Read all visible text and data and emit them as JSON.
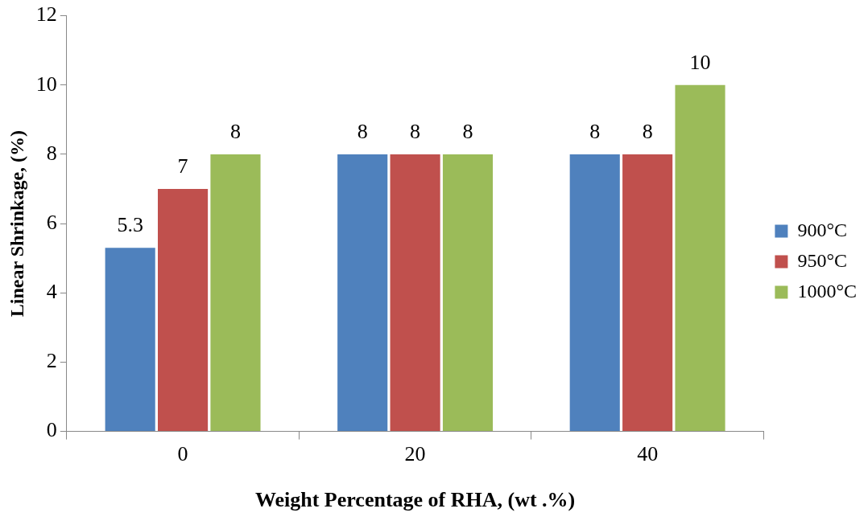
{
  "chart_data": {
    "type": "bar",
    "xlabel": "Weight Percentage of RHA, (wt .%)",
    "ylabel": "Linear Shrinkage, (%)",
    "categories": [
      "0",
      "20",
      "40"
    ],
    "series": [
      {
        "name": "900°C",
        "color": "#4f81bd",
        "values": [
          5.3,
          8,
          8
        ]
      },
      {
        "name": "950°C",
        "color": "#c0504d",
        "values": [
          7,
          8,
          8
        ]
      },
      {
        "name": "1000°C",
        "color": "#9bbb59",
        "values": [
          8,
          8,
          10
        ]
      }
    ],
    "ylim": [
      0,
      12
    ],
    "yticks": [
      0,
      2,
      4,
      6,
      8,
      10,
      12
    ],
    "grid": false,
    "legend": "right",
    "data_labels": true
  }
}
